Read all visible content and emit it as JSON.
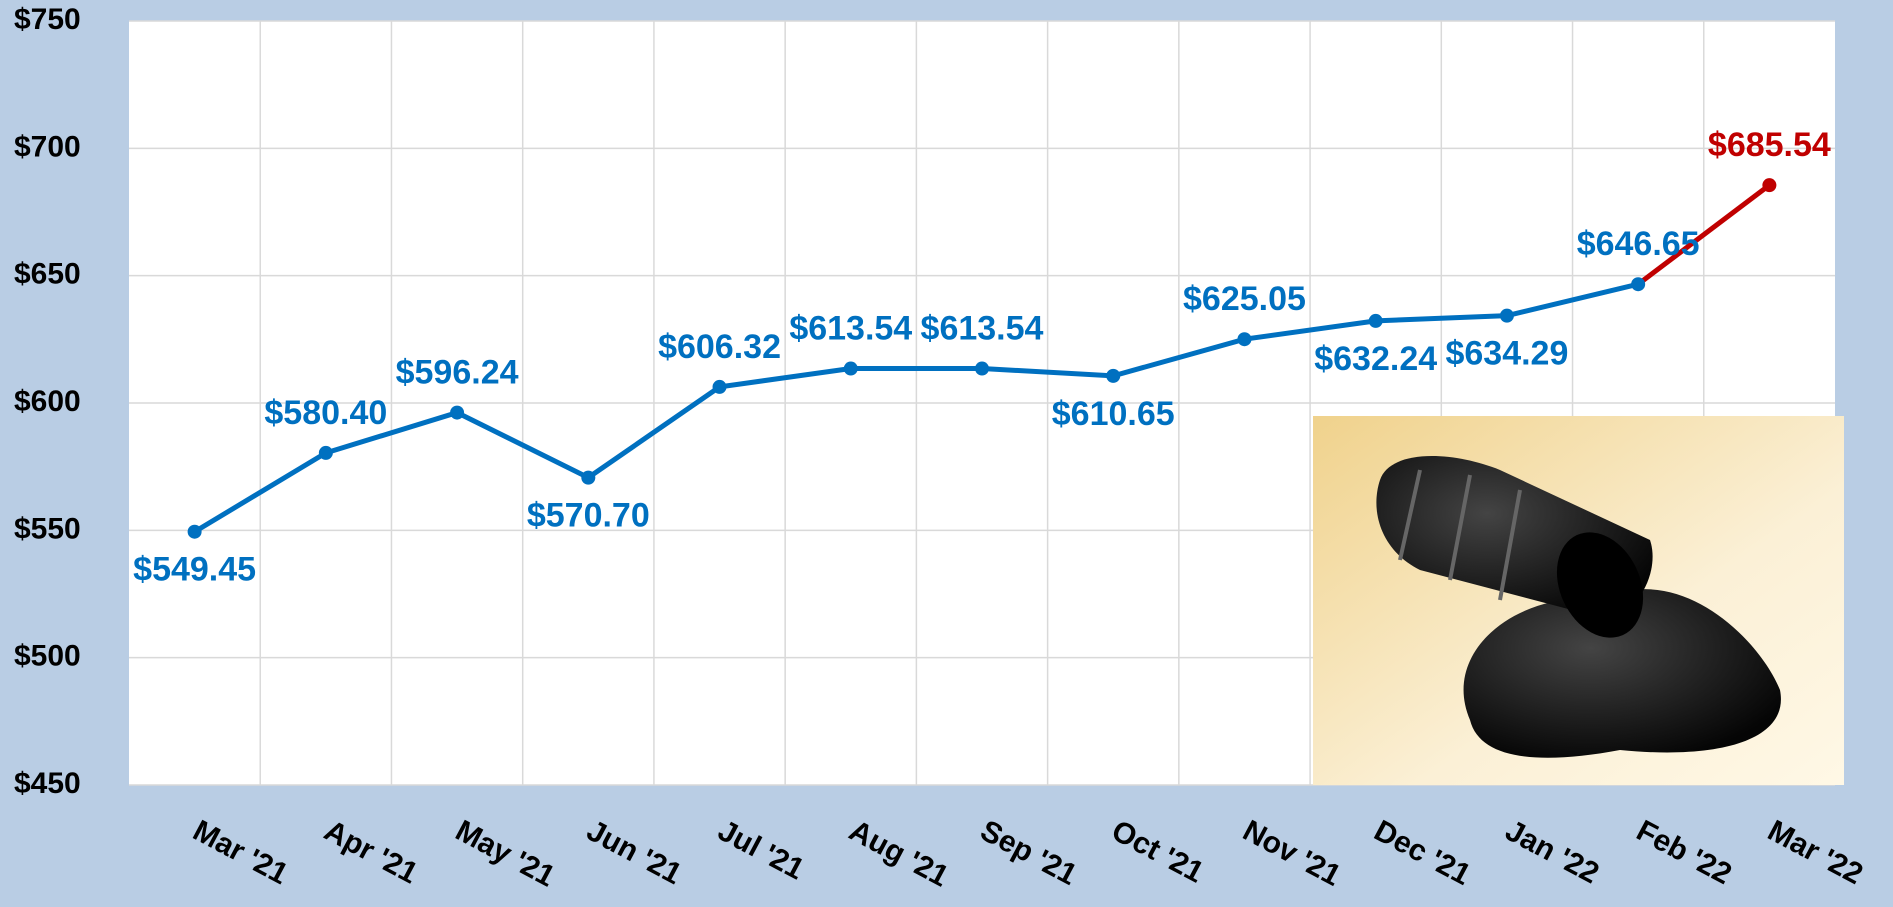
{
  "chart_data": {
    "type": "line",
    "categories": [
      "Mar '21",
      "Apr '21",
      "May '21",
      "Jun '21",
      "Jul '21",
      "Aug '21",
      "Sep '21",
      "Oct '21",
      "Nov '21",
      "Dec '21",
      "Jan '22",
      "Feb '22",
      "Mar '22"
    ],
    "series": [
      {
        "color": "#0070c0",
        "last_point_color": "#c00000",
        "values": [
          549.45,
          580.4,
          596.24,
          570.7,
          606.32,
          613.54,
          613.54,
          610.65,
          625.05,
          632.24,
          634.29,
          646.65,
          685.54
        ],
        "value_labels": [
          "$549.45",
          "$580.40",
          "$596.24",
          "$570.70",
          "$606.32",
          "$613.54",
          "$613.54",
          "$610.65",
          "$625.05",
          "$632.24",
          "$634.29",
          "$646.65",
          "$685.54"
        ]
      }
    ],
    "ylim": [
      450,
      750
    ],
    "yticks": [
      {
        "value": 450,
        "label": "$450"
      },
      {
        "value": 500,
        "label": "$500"
      },
      {
        "value": 550,
        "label": "$550"
      },
      {
        "value": 600,
        "label": "$600"
      },
      {
        "value": 650,
        "label": "$650"
      },
      {
        "value": 700,
        "label": "$700"
      },
      {
        "value": 750,
        "label": "$750"
      }
    ],
    "grid": true
  }
}
